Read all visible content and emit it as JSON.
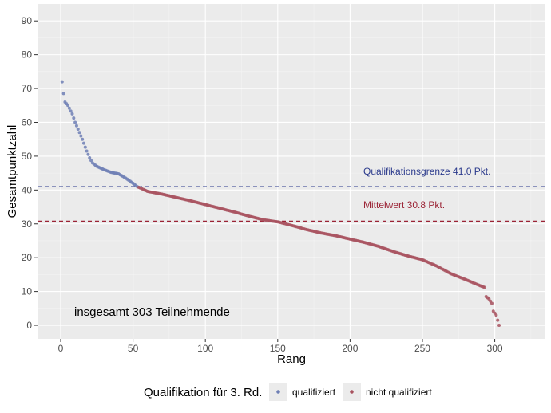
{
  "chart_data": {
    "type": "scatter",
    "xlabel": "Rang",
    "ylabel": "Gesamtpunktzahl",
    "xlim": [
      -16,
      335
    ],
    "ylim": [
      -4,
      95
    ],
    "x_ticks": [
      "0",
      "50",
      "100",
      "150",
      "200",
      "250",
      "300"
    ],
    "y_ticks": [
      "0",
      "10",
      "20",
      "30",
      "40",
      "50",
      "60",
      "70",
      "80",
      "90"
    ],
    "grid": true,
    "total_annotation": "insgesamt 303 Teilnehmende",
    "reference_lines": [
      {
        "label": "Qualifikationsgrenze 41.0 Pkt.",
        "y": 41.0,
        "color": "#2b3a8c"
      },
      {
        "label": "Mittelwert 30.8 Pkt.",
        "y": 30.8,
        "color": "#9b2335"
      }
    ],
    "legend": {
      "title": "Qualifikation für 3. Rd.",
      "position": "bottom",
      "items": [
        {
          "label": "qualifiziert",
          "color": "#6e7fb5"
        },
        {
          "label": "nicht qualifiziert",
          "color": "#a8525f"
        }
      ]
    },
    "series": [
      {
        "name": "qualifiziert",
        "color": "#6e7fb5",
        "curve": [
          [
            1,
            72
          ],
          [
            2,
            68.5
          ],
          [
            3,
            66
          ],
          [
            5,
            65
          ],
          [
            8,
            62.5
          ],
          [
            10,
            60
          ],
          [
            12,
            58
          ],
          [
            15,
            55
          ],
          [
            18,
            51.5
          ],
          [
            20,
            49.5
          ],
          [
            22,
            48
          ],
          [
            25,
            47
          ],
          [
            30,
            46
          ],
          [
            35,
            45.2
          ],
          [
            40,
            44.8
          ],
          [
            45,
            43.5
          ],
          [
            50,
            42
          ],
          [
            53,
            41
          ]
        ]
      },
      {
        "name": "nicht qualifiziert",
        "color": "#a8525f",
        "curve": [
          [
            54,
            40.8
          ],
          [
            60,
            39.6
          ],
          [
            70,
            38.8
          ],
          [
            80,
            37.8
          ],
          [
            90,
            36.8
          ],
          [
            100,
            35.7
          ],
          [
            110,
            34.6
          ],
          [
            120,
            33.5
          ],
          [
            130,
            32.3
          ],
          [
            140,
            31.2
          ],
          [
            150,
            30.6
          ],
          [
            160,
            29.5
          ],
          [
            170,
            28.3
          ],
          [
            180,
            27.3
          ],
          [
            190,
            26.5
          ],
          [
            200,
            25.5
          ],
          [
            210,
            24.5
          ],
          [
            220,
            23.3
          ],
          [
            230,
            21.8
          ],
          [
            240,
            20.5
          ],
          [
            250,
            19.4
          ],
          [
            260,
            17.5
          ],
          [
            270,
            15.2
          ],
          [
            280,
            13.5
          ],
          [
            290,
            11.7
          ],
          [
            293,
            11.2
          ],
          [
            294,
            8.5
          ],
          [
            296,
            7.8
          ],
          [
            298,
            6.5
          ],
          [
            299,
            4.2
          ],
          [
            301,
            3
          ],
          [
            302,
            1.5
          ],
          [
            303,
            0
          ]
        ]
      }
    ]
  }
}
